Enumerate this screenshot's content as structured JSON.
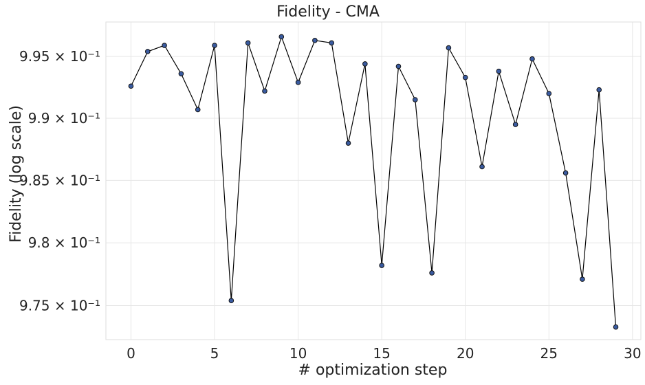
{
  "chart_data": {
    "type": "line",
    "title": "Fidelity - CMA",
    "xlabel": "# optimization step",
    "ylabel": "Fidelity (log scale)",
    "y_scale": "log",
    "grid": true,
    "xlim": [
      -1.5,
      30.5
    ],
    "ylim": [
      0.9723,
      0.9978
    ],
    "x_ticks": [
      {
        "value": 0,
        "label": "0"
      },
      {
        "value": 5,
        "label": "5"
      },
      {
        "value": 10,
        "label": "10"
      },
      {
        "value": 15,
        "label": "15"
      },
      {
        "value": 20,
        "label": "20"
      },
      {
        "value": 25,
        "label": "25"
      },
      {
        "value": 30,
        "label": "30"
      }
    ],
    "y_ticks": [
      {
        "value": 0.995,
        "label": "9.95 × 10⁻¹"
      },
      {
        "value": 0.99,
        "label": "9.9 × 10⁻¹"
      },
      {
        "value": 0.985,
        "label": "9.85 × 10⁻¹"
      },
      {
        "value": 0.98,
        "label": "9.8 × 10⁻¹"
      },
      {
        "value": 0.975,
        "label": "9.75 × 10⁻¹"
      }
    ],
    "line_color": "#000000",
    "marker_color": "#3a5ba0",
    "marker_edge_color": "#111111",
    "series": [
      {
        "x": [
          0,
          1,
          2,
          3,
          4,
          5,
          6,
          7,
          8,
          9,
          10,
          11,
          12,
          13,
          14,
          15,
          16,
          17,
          18,
          19,
          20,
          21,
          22,
          23,
          24,
          25,
          26,
          27,
          28,
          29
        ],
        "y": [
          0.9926,
          0.9954,
          0.9959,
          0.9936,
          0.9907,
          0.9959,
          0.9754,
          0.9961,
          0.9922,
          0.9966,
          0.9929,
          0.9963,
          0.9961,
          0.988,
          0.9944,
          0.9782,
          0.9942,
          0.9915,
          0.9776,
          0.9957,
          0.9933,
          0.9861,
          0.9938,
          0.9895,
          0.9948,
          0.992,
          0.9856,
          0.9771,
          0.9923,
          0.9733
        ]
      }
    ]
  }
}
